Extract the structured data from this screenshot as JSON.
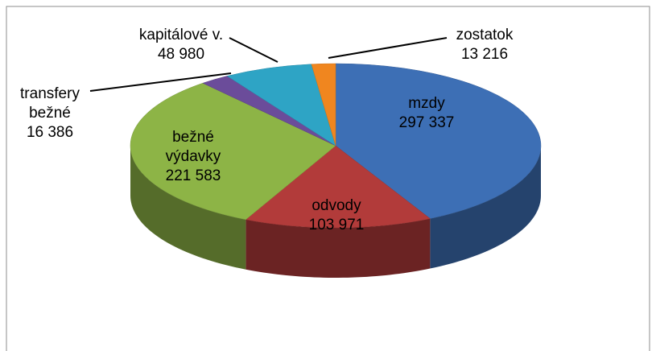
{
  "chart_data": {
    "type": "pie3d",
    "categories": [
      "mzdy",
      "odvody",
      "bežné výdavky",
      "transfery bežné",
      "kapitálové v.",
      "zostatok"
    ],
    "values": [
      297337,
      103971,
      221583,
      16386,
      48980,
      13216
    ],
    "value_labels": [
      "297 337",
      "103 971",
      "221 583",
      "16 386",
      "48 980",
      "13 216"
    ],
    "colors": [
      "#3d6fb5",
      "#b23b3a",
      "#8db446",
      "#6b4c9a",
      "#2ea4c5",
      "#f0861f"
    ]
  }
}
